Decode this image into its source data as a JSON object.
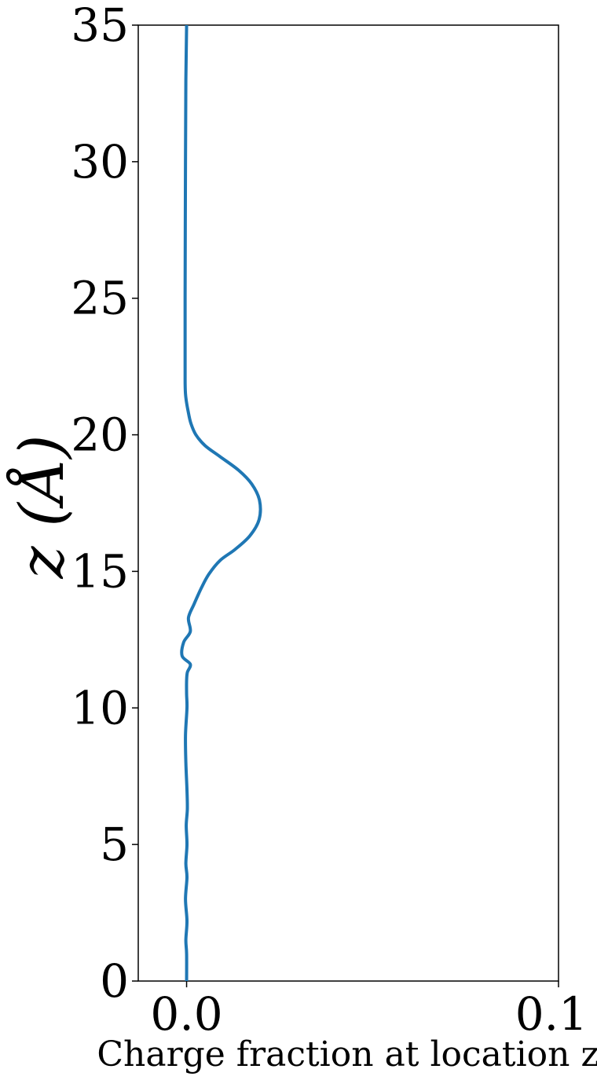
{
  "chart_data": {
    "type": "line",
    "xlabel": "Charge fraction at location z",
    "ylabel": "z (Å)",
    "xlim": [
      -0.013,
      0.1
    ],
    "ylim": [
      0,
      35
    ],
    "xticks": [
      0.0,
      0.1
    ],
    "xtick_labels": [
      "0.0",
      "0.1"
    ],
    "yticks": [
      0,
      5,
      10,
      15,
      20,
      25,
      30,
      35
    ],
    "ytick_labels": [
      "0",
      "5",
      "10",
      "15",
      "20",
      "25",
      "30",
      "35"
    ],
    "grid": false,
    "series": [
      {
        "color": "#1f77b4",
        "x": [
          0.0,
          0.0,
          -0.0002,
          0.0001,
          -0.0003,
          0.0001,
          -0.0002,
          0.0001,
          -0.0001,
          0.0002,
          0.0001,
          -0.0002,
          -0.0003,
          0.0001,
          0.0,
          0.0,
          0.0002,
          0.001,
          -0.0012,
          -0.0008,
          0.001,
          0.0005,
          0.002,
          0.004,
          0.006,
          0.009,
          0.013,
          0.017,
          0.0195,
          0.0196,
          0.0175,
          0.014,
          0.009,
          0.005,
          0.0025,
          0.0012,
          0.0005,
          -0.0003,
          -0.0004,
          -0.0004,
          -0.0003,
          -0.0002,
          0.0
        ],
        "y": [
          0.0,
          1.0,
          1.5,
          2.2,
          3.0,
          3.8,
          4.3,
          5.0,
          5.7,
          6.3,
          7.0,
          8.0,
          9.0,
          10.0,
          10.5,
          11.0,
          11.3,
          11.6,
          11.9,
          12.4,
          12.8,
          13.3,
          13.8,
          14.4,
          14.9,
          15.4,
          15.8,
          16.3,
          16.9,
          17.6,
          18.2,
          18.7,
          19.2,
          19.6,
          20.0,
          20.4,
          20.8,
          21.5,
          22.5,
          25.0,
          30.0,
          33.0,
          35.0
        ]
      }
    ]
  }
}
